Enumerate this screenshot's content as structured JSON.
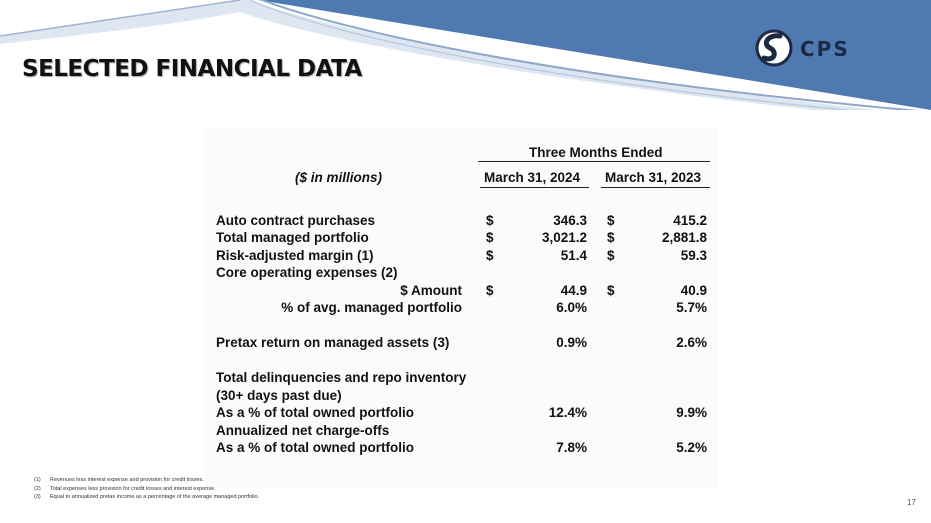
{
  "slide": {
    "title": "SELECTED FINANCIAL DATA",
    "logo_text": "CPS",
    "page_number": "17",
    "colors": {
      "banner_blue": "#4f79b1",
      "banner_dark": "#3f6499",
      "title_text": "#111111"
    }
  },
  "table": {
    "units_label": "($ in millions)",
    "group_header": "Three Months Ended",
    "columns": [
      "March 31, 2024",
      "March 31, 2023"
    ],
    "rows": [
      {
        "label": "Auto contract purchases",
        "indent": false,
        "cur1": "$",
        "v1": "346.3",
        "cur2": "$",
        "v2": "415.2"
      },
      {
        "label": "Total managed portfolio",
        "indent": false,
        "cur1": "$",
        "v1": "3,021.2",
        "cur2": "$",
        "v2": "2,881.8"
      },
      {
        "label": "Risk-adjusted margin (1)",
        "indent": false,
        "cur1": "$",
        "v1": "51.4",
        "cur2": "$",
        "v2": "59.3"
      },
      {
        "label": "Core operating expenses (2)",
        "indent": false,
        "cur1": "",
        "v1": "",
        "cur2": "",
        "v2": ""
      },
      {
        "label": "$ Amount",
        "indent": true,
        "cur1": "$",
        "v1": "44.9",
        "cur2": "$",
        "v2": "40.9"
      },
      {
        "label": "% of avg. managed portfolio",
        "indent": true,
        "cur1": "",
        "v1": "6.0%",
        "cur2": "",
        "v2": "5.7%"
      },
      {
        "label": "Pretax return on managed assets (3)",
        "indent": false,
        "cur1": "",
        "v1": "0.9%",
        "cur2": "",
        "v2": "2.6%"
      },
      {
        "label": "Total delinquencies and repo inventory",
        "indent": false,
        "cur1": "",
        "v1": "",
        "cur2": "",
        "v2": ""
      },
      {
        "label": "(30+ days past due)",
        "indent": false,
        "cur1": "",
        "v1": "",
        "cur2": "",
        "v2": ""
      },
      {
        "label": "As a % of total owned portfolio",
        "indent": false,
        "cur1": "",
        "v1": "12.4%",
        "cur2": "",
        "v2": "9.9%"
      },
      {
        "label": "Annualized net charge-offs",
        "indent": false,
        "cur1": "",
        "v1": "",
        "cur2": "",
        "v2": ""
      },
      {
        "label": "As a % of total owned portfolio",
        "indent": false,
        "cur1": "",
        "v1": "7.8%",
        "cur2": "",
        "v2": "5.2%"
      }
    ]
  },
  "footnotes": [
    {
      "num": "(1)",
      "text": "Revenues less interest expense and provision for credit losses."
    },
    {
      "num": "(2)",
      "text": "Total expenses less provision for credit losses and interest expense."
    },
    {
      "num": "(3)",
      "text": "Equal to annualized pretax income as a percentage of the average managed portfolio."
    }
  ]
}
